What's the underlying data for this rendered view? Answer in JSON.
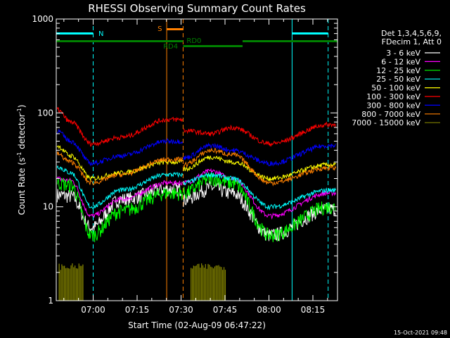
{
  "chart_data": {
    "type": "line",
    "title": "RHESSI Observing Summary Count Rates",
    "xlabel": "Start Time (02-Aug-09 06:47:22)",
    "ylabel_main": "Count Rate (s",
    "ylabel_sup1": "-1",
    "ylabel_mid": " detector",
    "ylabel_sup2": "-1",
    "ylabel_end": ")",
    "y_scale": "log",
    "ylim": [
      1,
      1000
    ],
    "x_range_minutes": [
      0,
      96
    ],
    "x_ticks": [
      {
        "minute": 12.6,
        "label": "07:00"
      },
      {
        "minute": 27.6,
        "label": "07:15"
      },
      {
        "minute": 42.6,
        "label": "07:30"
      },
      {
        "minute": 57.6,
        "label": "07:45"
      },
      {
        "minute": 72.6,
        "label": "08:00"
      },
      {
        "minute": 87.6,
        "label": "08:15"
      }
    ],
    "y_ticks": [
      {
        "value": 1,
        "label": "1"
      },
      {
        "value": 10,
        "label": "10"
      },
      {
        "value": 100,
        "label": "100"
      },
      {
        "value": 1000,
        "label": "1000"
      }
    ],
    "legend_header": [
      "Det 1,3,4,5,6,9,",
      "FDecim 1, Att 0"
    ],
    "legend_placement": "right",
    "timestamp": "15-Oct-2021 09:48",
    "series": [
      {
        "name": "3 - 6 keV",
        "color": "#ffffff",
        "day1": [
          13.5,
          13,
          6,
          12,
          15.5
        ],
        "day2": [
          12,
          16,
          14,
          5,
          9.5
        ]
      },
      {
        "name": "6 - 12 keV",
        "color": "#ff00ff",
        "day1": [
          20,
          19,
          8,
          12,
          18
        ],
        "day2": [
          18,
          24,
          20,
          8,
          14
        ]
      },
      {
        "name": "12 - 25 keV",
        "color": "#00ff00",
        "day1": [
          18,
          17,
          5,
          9,
          14
        ],
        "day2": [
          14,
          20,
          18,
          5,
          10
        ]
      },
      {
        "name": "25 - 50 keV",
        "color": "#00ffff",
        "day1": [
          27,
          23,
          10,
          15,
          22
        ],
        "day2": [
          18,
          22,
          20,
          10,
          15
        ]
      },
      {
        "name": "50 - 100 keV",
        "color": "#ffff00",
        "day1": [
          45,
          35,
          20,
          23,
          30
        ],
        "day2": [
          25,
          34,
          30,
          20,
          28
        ]
      },
      {
        "name": "100 - 300 keV",
        "color": "#ff0000",
        "day1": [
          110,
          80,
          47,
          55,
          85
        ],
        "day2": [
          65,
          60,
          70,
          47,
          75
        ]
      },
      {
        "name": "300 - 800 keV",
        "color": "#0000ff",
        "day1": [
          65,
          50,
          29,
          35,
          50
        ],
        "day2": [
          33,
          45,
          40,
          29,
          45
        ]
      },
      {
        "name": "800 - 7000 keV",
        "color": "#ff8000",
        "day1": [
          37,
          30,
          18,
          22,
          32
        ],
        "day2": [
          28,
          40,
          36,
          18,
          26
        ]
      },
      {
        "name": "7000 - 15000 keV",
        "color": "#808000",
        "day1": [
          2.5,
          2.5,
          0,
          0,
          0
        ],
        "day2": [
          0,
          2.5,
          2.5,
          0,
          0
        ]
      }
    ],
    "annotations": [
      {
        "label": "N",
        "color": "#00ffff"
      },
      {
        "label": "S",
        "color": "#ff8000"
      },
      {
        "label": "RD0",
        "color": "#008000"
      },
      {
        "label": "RD4",
        "color": "#008000"
      }
    ],
    "markers_minutes": {
      "night_start_dashed": [
        12.6,
        92.8
      ],
      "night_end_solid": [
        0,
        80.5
      ],
      "saa_start_solid": 37.7,
      "saa_end_dashed": 43.3,
      "orange_drop_minute": 43.3,
      "rd0_breaks": [
        43.3,
        63.6
      ]
    }
  }
}
